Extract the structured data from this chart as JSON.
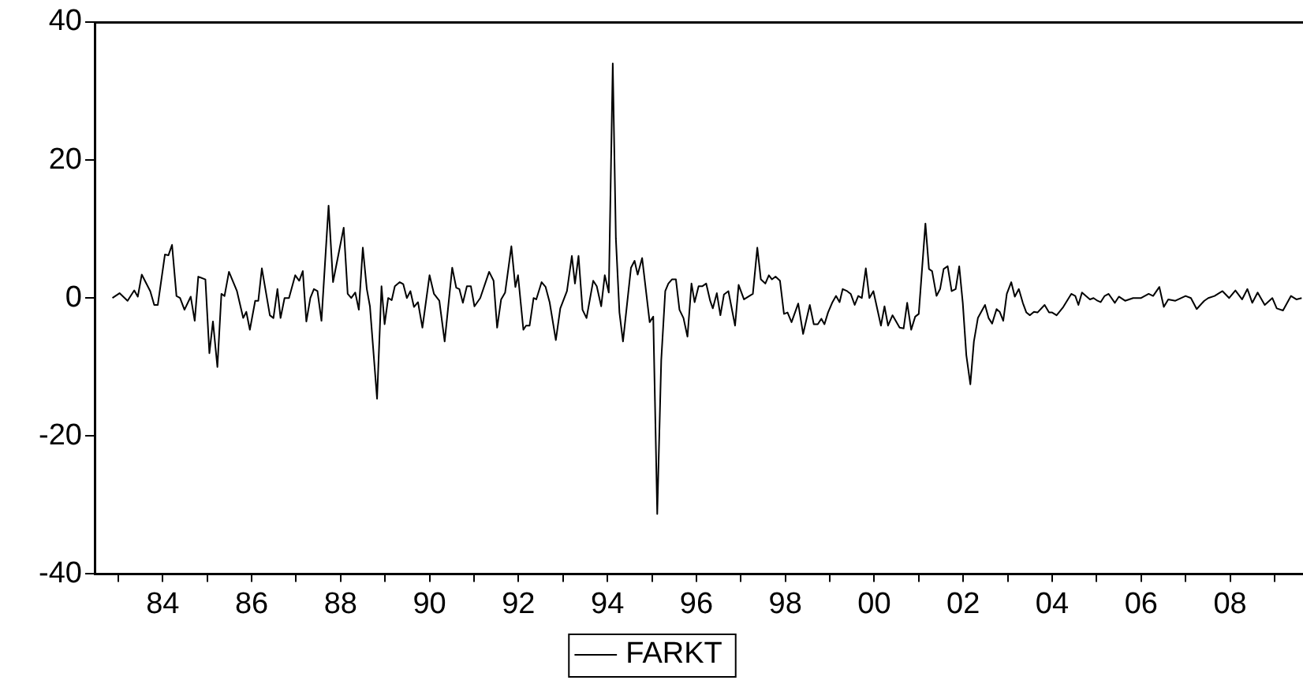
{
  "chart_data": {
    "type": "line",
    "x": [
      1982.87,
      1983.03,
      1983.21,
      1983.36,
      1983.44,
      1983.53,
      1983.72,
      1983.81,
      1983.89,
      1984.05,
      1984.13,
      1984.21,
      1984.31,
      1984.39,
      1984.49,
      1984.63,
      1984.72,
      1984.8,
      1984.96,
      1985.05,
      1985.13,
      1985.23,
      1985.32,
      1985.39,
      1985.49,
      1985.67,
      1985.81,
      1985.88,
      1985.96,
      1986.08,
      1986.15,
      1986.23,
      1986.41,
      1986.49,
      1986.58,
      1986.65,
      1986.74,
      1986.84,
      1986.98,
      1987.07,
      1987.15,
      1987.23,
      1987.32,
      1987.4,
      1987.48,
      1987.57,
      1987.73,
      1987.83,
      1988.07,
      1988.16,
      1988.24,
      1988.33,
      1988.41,
      1988.5,
      1988.59,
      1988.66,
      1988.82,
      1988.92,
      1988.99,
      1989.07,
      1989.15,
      1989.22,
      1989.33,
      1989.41,
      1989.49,
      1989.57,
      1989.65,
      1989.74,
      1989.84,
      1990.0,
      1990.1,
      1990.22,
      1990.34,
      1990.51,
      1990.6,
      1990.67,
      1990.75,
      1990.84,
      1990.93,
      1991.01,
      1991.14,
      1991.34,
      1991.44,
      1991.52,
      1991.61,
      1991.7,
      1991.84,
      1991.93,
      1991.99,
      1992.11,
      1992.17,
      1992.25,
      1992.34,
      1992.4,
      1992.52,
      1992.61,
      1992.7,
      1992.84,
      1992.94,
      1993.09,
      1993.2,
      1993.27,
      1993.35,
      1993.44,
      1993.53,
      1993.68,
      1993.76,
      1993.86,
      1993.94,
      1994.03,
      1994.12,
      1994.19,
      1994.27,
      1994.35,
      1994.53,
      1994.61,
      1994.68,
      1994.78,
      1994.95,
      1995.03,
      1995.12,
      1995.21,
      1995.3,
      1995.37,
      1995.45,
      1995.54,
      1995.62,
      1995.71,
      1995.8,
      1995.89,
      1995.96,
      1996.05,
      1996.13,
      1996.22,
      1996.31,
      1996.37,
      1996.46,
      1996.54,
      1996.62,
      1996.72,
      1996.87,
      1996.95,
      1997.07,
      1997.27,
      1997.37,
      1997.45,
      1997.55,
      1997.63,
      1997.7,
      1997.78,
      1997.88,
      1997.97,
      1998.05,
      1998.14,
      1998.29,
      1998.4,
      1998.55,
      1998.64,
      1998.73,
      1998.81,
      1998.88,
      1998.96,
      1999.06,
      1999.14,
      1999.22,
      1999.29,
      1999.39,
      1999.47,
      1999.56,
      1999.64,
      1999.72,
      1999.81,
      1999.89,
      1999.98,
      2000.15,
      2000.23,
      2000.31,
      2000.41,
      2000.57,
      2000.66,
      2000.74,
      2000.83,
      2000.92,
      2001.0,
      2001.15,
      2001.23,
      2001.3,
      2001.4,
      2001.48,
      2001.56,
      2001.65,
      2001.74,
      2001.83,
      2001.91,
      2001.99,
      2002.07,
      2002.16,
      2002.24,
      2002.33,
      2002.49,
      2002.57,
      2002.65,
      2002.75,
      2002.82,
      2002.9,
      2002.98,
      2003.08,
      2003.16,
      2003.25,
      2003.34,
      2003.42,
      2003.5,
      2003.59,
      2003.67,
      2003.83,
      2003.93,
      2004.0,
      2004.1,
      2004.25,
      2004.43,
      2004.52,
      2004.59,
      2004.67,
      2004.85,
      2004.93,
      2005.02,
      2005.09,
      2005.18,
      2005.27,
      2005.41,
      2005.5,
      2005.64,
      2005.82,
      2006.0,
      2006.17,
      2006.27,
      2006.41,
      2006.51,
      2006.61,
      2006.77,
      2007.0,
      2007.12,
      2007.25,
      2007.42,
      2007.51,
      2007.65,
      2007.83,
      2007.98,
      2008.12,
      2008.27,
      2008.39,
      2008.5,
      2008.62,
      2008.78,
      2008.95,
      2009.05,
      2009.19,
      2009.37,
      2009.49,
      2009.61
    ],
    "series": [
      {
        "name": "FARKT",
        "color": "#000000",
        "values": [
          0,
          0.7,
          -0.4,
          1.1,
          0.2,
          3.4,
          1.0,
          -1.0,
          -1.0,
          6.3,
          6.2,
          7.7,
          0.3,
          0,
          -1.7,
          0.2,
          -3.3,
          3.1,
          2.7,
          -8.0,
          -3.4,
          -10.0,
          0.6,
          0.3,
          3.8,
          1.0,
          -2.9,
          -2.0,
          -4.6,
          -0.4,
          -0.4,
          4.3,
          -2.5,
          -2.9,
          1.3,
          -2.9,
          0,
          0,
          3.3,
          2.5,
          3.9,
          -3.4,
          0,
          1.3,
          1.0,
          -3.3,
          13.4,
          2.3,
          10.2,
          0.6,
          0,
          0.8,
          -1.7,
          7.3,
          1.3,
          -1.2,
          -14.6,
          1.7,
          -3.8,
          0,
          -0.3,
          1.7,
          2.3,
          2.0,
          0,
          1.0,
          -1.3,
          -0.6,
          -4.3,
          3.3,
          0.6,
          -0.4,
          -6.3,
          4.4,
          1.5,
          1.3,
          -0.7,
          1.7,
          1.7,
          -1.2,
          0,
          3.8,
          2.5,
          -4.3,
          -0.2,
          0.8,
          7.5,
          1.6,
          3.3,
          -4.6,
          -4.0,
          -4.0,
          0,
          -0.2,
          2.3,
          1.6,
          -0.6,
          -6.1,
          -1.5,
          1.0,
          6.1,
          2.1,
          6.1,
          -1.7,
          -2.9,
          2.5,
          1.7,
          -1.2,
          3.3,
          0.8,
          34.0,
          8.6,
          -2.1,
          -6.3,
          4.4,
          5.4,
          3.4,
          5.8,
          -3.5,
          -2.7,
          -31.3,
          -9.0,
          1.0,
          2.1,
          2.7,
          2.7,
          -1.7,
          -2.9,
          -5.6,
          2.1,
          -0.6,
          1.7,
          1.7,
          2.1,
          -0.4,
          -1.5,
          0.7,
          -2.5,
          0.5,
          1.0,
          -4.0,
          1.9,
          -0.2,
          0.6,
          7.3,
          2.7,
          2.1,
          3.3,
          2.7,
          3.1,
          2.5,
          -2.3,
          -2.1,
          -3.5,
          -0.8,
          -5.2,
          -1.0,
          -3.8,
          -3.8,
          -3.0,
          -3.8,
          -2.1,
          -0.6,
          0.3,
          -0.6,
          1.3,
          1.0,
          0.6,
          -1.0,
          0.3,
          0,
          4.3,
          0,
          1.0,
          -4.0,
          -1.2,
          -4.0,
          -2.5,
          -4.3,
          -4.4,
          -0.7,
          -4.6,
          -2.7,
          -2.3,
          10.8,
          4.2,
          3.9,
          0.3,
          1.3,
          4.2,
          4.6,
          1.0,
          1.3,
          4.6,
          -0.7,
          -8.3,
          -12.5,
          -6.3,
          -2.9,
          -1.0,
          -2.9,
          -3.7,
          -1.6,
          -2.0,
          -3.3,
          0.6,
          2.3,
          0.2,
          1.3,
          -0.7,
          -2.1,
          -2.5,
          -2.0,
          -2.1,
          -1.0,
          -2.1,
          -2.1,
          -2.5,
          -1.3,
          0.6,
          0.3,
          -1.0,
          0.8,
          -0.2,
          0,
          -0.4,
          -0.6,
          0.3,
          0.6,
          -0.7,
          0.2,
          -0.4,
          0,
          0,
          0.6,
          0.3,
          1.6,
          -1.3,
          -0.2,
          -0.4,
          0.3,
          0,
          -1.6,
          -0.4,
          0,
          0.3,
          1.0,
          0,
          1.1,
          -0.2,
          1.3,
          -0.7,
          0.8,
          -1.0,
          0,
          -1.5,
          -1.8,
          0.3,
          -0.2,
          0
        ]
      }
    ],
    "xlim": [
      1982.47,
      2009.64
    ],
    "xticks": [
      {
        "value": 1983,
        "label": null
      },
      {
        "value": 1984,
        "label": "84"
      },
      {
        "value": 1985,
        "label": null
      },
      {
        "value": 1986,
        "label": "86"
      },
      {
        "value": 1987,
        "label": null
      },
      {
        "value": 1988,
        "label": "88"
      },
      {
        "value": 1989,
        "label": null
      },
      {
        "value": 1990,
        "label": "90"
      },
      {
        "value": 1991,
        "label": null
      },
      {
        "value": 1992,
        "label": "92"
      },
      {
        "value": 1993,
        "label": null
      },
      {
        "value": 1994,
        "label": "94"
      },
      {
        "value": 1995,
        "label": null
      },
      {
        "value": 1996,
        "label": "96"
      },
      {
        "value": 1997,
        "label": null
      },
      {
        "value": 1998,
        "label": "98"
      },
      {
        "value": 1999,
        "label": null
      },
      {
        "value": 2000,
        "label": "00"
      },
      {
        "value": 2001,
        "label": null
      },
      {
        "value": 2002,
        "label": "02"
      },
      {
        "value": 2003,
        "label": null
      },
      {
        "value": 2004,
        "label": "04"
      },
      {
        "value": 2005,
        "label": null
      },
      {
        "value": 2006,
        "label": "06"
      },
      {
        "value": 2007,
        "label": null
      },
      {
        "value": 2008,
        "label": "08"
      },
      {
        "value": 2009,
        "label": null
      }
    ],
    "ylim": [
      -40,
      40
    ],
    "yticks": [
      -40,
      -20,
      0,
      20,
      40
    ],
    "legend": "bottom",
    "marker": "none",
    "line_style": "solid"
  }
}
